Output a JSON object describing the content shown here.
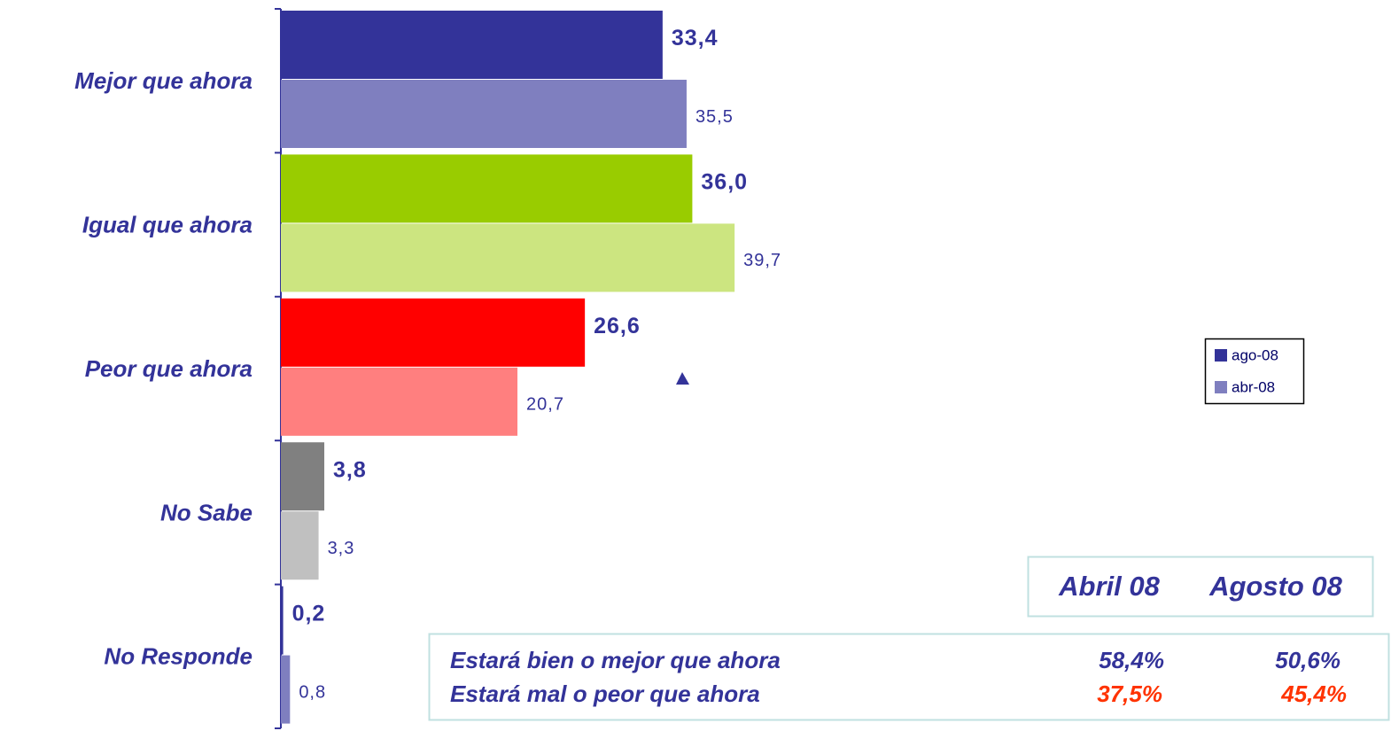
{
  "chart_data": {
    "type": "bar",
    "orientation": "horizontal",
    "categories": [
      "Mejor que ahora",
      "Igual que  ahora",
      "Peor que ahora",
      "No Sabe",
      "No Responde"
    ],
    "xlim": [
      0,
      100
    ],
    "series": [
      {
        "name": "ago-08",
        "color": "#333399",
        "colors": [
          "#333399",
          "#99cc00",
          "#ff0000",
          "#808080",
          "#333399"
        ],
        "values": [
          33.4,
          36.0,
          26.6,
          3.8,
          0.2
        ],
        "value_labels": [
          "33,4",
          "36,0",
          "26,6",
          "3,8",
          "0,2"
        ]
      },
      {
        "name": "abr-08",
        "color": "#7f7fbf",
        "colors": [
          "#7f7fbf",
          "#cce580",
          "#ff7f7f",
          "#c0c0c0",
          "#7f7fbf"
        ],
        "values": [
          35.5,
          39.7,
          20.7,
          3.3,
          0.8
        ],
        "value_labels": [
          "35,5",
          "39,7",
          "20,7",
          "3,3",
          "0,8"
        ]
      }
    ]
  },
  "table": {
    "header": [
      "Abril 08",
      "Agosto 08"
    ],
    "rows": [
      [
        "Estará bien o mejor  que ahora",
        "58,4%",
        "50,6%"
      ],
      [
        "Estará mal o peor  que ahora",
        "37,5%",
        "45,4%"
      ]
    ]
  }
}
